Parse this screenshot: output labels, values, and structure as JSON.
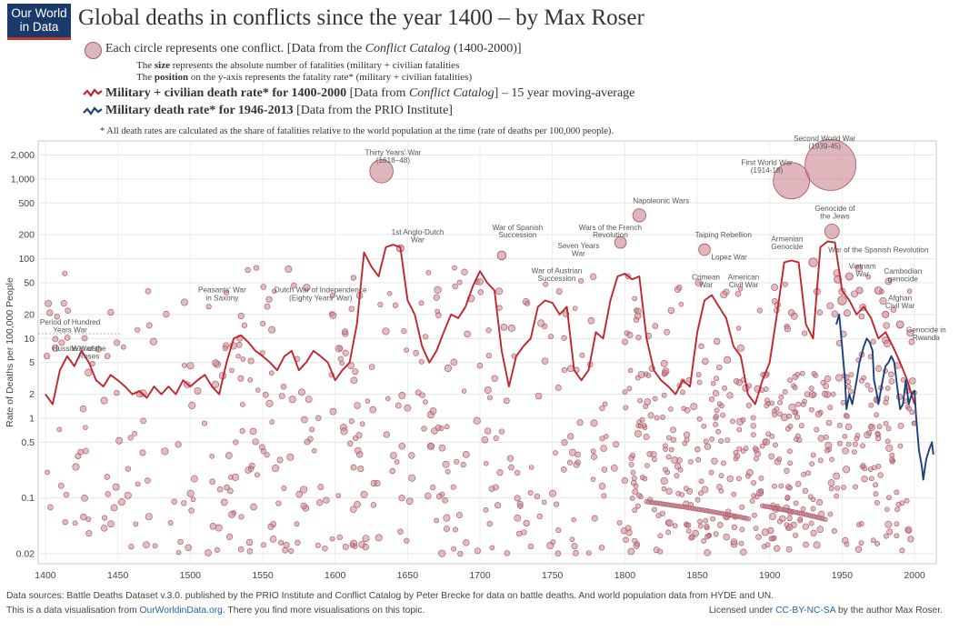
{
  "logo": {
    "line1": "Our World",
    "line2": "in Data"
  },
  "title": "Global deaths in conflicts since the year 1400 – by Max Roser",
  "legend": {
    "circles_a": "Each circle represents one conflict. [Data from the ",
    "circles_b": "Conflict Catalog",
    "circles_c": " (1400-2000)]",
    "size_a": "The ",
    "size_b": "size",
    "size_c": " represents the absolute number of fatalities (military + civilian fatalities",
    "pos_a": "The ",
    "pos_b": "position",
    "pos_c": " on the y-axis represents the fatality rate* (military + civilian fatalities)",
    "red_a": "Military + civilian death rate* for 1400-2000",
    "red_b": " [Data from ",
    "red_c": "Conflict Catalog",
    "red_d": "] – 15 year moving-average",
    "blue_a": "Military death rate* for 1946-2013",
    "blue_b": " [Data from the PRIO Institute]",
    "note": "* All death rates are calculated as the share of fatalities relative to the world population at the time (rate of deaths per 100,000 people)."
  },
  "footer": {
    "sources": "Data sources: Battle Deaths Dataset v.3.0. published by the PRIO Institute and Conflict Catalog by Peter Brecke for data on battle deaths. And world population data from HYDE and UN.",
    "vis_a": "This is a data visualisation from ",
    "vis_link": "OurWorldinData.org",
    "vis_b": ". There you find more visualisations on this topic.",
    "lic_a": "Licensed under ",
    "lic_link": "CC-BY-NC-SA",
    "lic_b": " by the author Max Roser."
  },
  "colors": {
    "red": "#c0262d",
    "blue": "#1f3f7a",
    "circle_fill": "#c9868f",
    "circle_stroke": "#a8525e"
  },
  "chart_data": {
    "type": "scatter",
    "xlim": [
      1395,
      2015
    ],
    "ylim": [
      0.015,
      3000
    ],
    "yscale": "log",
    "ylabel": "Rate of Deaths per 100,000 People",
    "xticks": [
      1400,
      1450,
      1500,
      1550,
      1600,
      1650,
      1700,
      1750,
      1800,
      1850,
      1900,
      1950,
      2000
    ],
    "yticks": [
      {
        "v": 2000,
        "label": "2,000"
      },
      {
        "v": 1000,
        "label": "1,000"
      },
      {
        "v": 500,
        "label": "500"
      },
      {
        "v": 200,
        "label": "200"
      },
      {
        "v": 100,
        "label": "100"
      },
      {
        "v": 50,
        "label": "50"
      },
      {
        "v": 20,
        "label": "20"
      },
      {
        "v": 10,
        "label": "10"
      },
      {
        "v": 5,
        "label": "5"
      },
      {
        "v": 2,
        "label": "2"
      },
      {
        "v": 1,
        "label": "1"
      },
      {
        "v": 0.5,
        "label": "0.5"
      },
      {
        "v": 0.1,
        "label": "0.1"
      },
      {
        "v": 0.02,
        "label": "0.02"
      }
    ],
    "red_series": [
      [
        1400,
        2
      ],
      [
        1405,
        1.5
      ],
      [
        1410,
        4
      ],
      [
        1415,
        6
      ],
      [
        1420,
        4.5
      ],
      [
        1425,
        7
      ],
      [
        1430,
        5
      ],
      [
        1435,
        3
      ],
      [
        1440,
        2.5
      ],
      [
        1445,
        3.5
      ],
      [
        1450,
        3
      ],
      [
        1455,
        2.5
      ],
      [
        1460,
        2
      ],
      [
        1465,
        2.2
      ],
      [
        1470,
        1.8
      ],
      [
        1475,
        2.5
      ],
      [
        1480,
        2
      ],
      [
        1485,
        2.5
      ],
      [
        1490,
        2
      ],
      [
        1495,
        3
      ],
      [
        1500,
        2.5
      ],
      [
        1505,
        3
      ],
      [
        1510,
        3.5
      ],
      [
        1515,
        2.5
      ],
      [
        1520,
        2
      ],
      [
        1525,
        5
      ],
      [
        1530,
        10
      ],
      [
        1535,
        11
      ],
      [
        1540,
        9
      ],
      [
        1545,
        7
      ],
      [
        1550,
        6
      ],
      [
        1555,
        5
      ],
      [
        1560,
        4
      ],
      [
        1565,
        6
      ],
      [
        1570,
        7
      ],
      [
        1575,
        4
      ],
      [
        1580,
        5
      ],
      [
        1585,
        7
      ],
      [
        1590,
        6
      ],
      [
        1595,
        5
      ],
      [
        1600,
        3
      ],
      [
        1605,
        4
      ],
      [
        1610,
        5
      ],
      [
        1615,
        15
      ],
      [
        1620,
        120
      ],
      [
        1625,
        80
      ],
      [
        1630,
        60
      ],
      [
        1635,
        140
      ],
      [
        1640,
        150
      ],
      [
        1645,
        140
      ],
      [
        1650,
        30
      ],
      [
        1655,
        20
      ],
      [
        1660,
        8
      ],
      [
        1665,
        5
      ],
      [
        1670,
        7
      ],
      [
        1675,
        12
      ],
      [
        1680,
        20
      ],
      [
        1685,
        18
      ],
      [
        1690,
        25
      ],
      [
        1695,
        45
      ],
      [
        1700,
        70
      ],
      [
        1705,
        50
      ],
      [
        1710,
        40
      ],
      [
        1715,
        7
      ],
      [
        1720,
        2.5
      ],
      [
        1725,
        6
      ],
      [
        1730,
        8
      ],
      [
        1735,
        10
      ],
      [
        1740,
        25
      ],
      [
        1745,
        30
      ],
      [
        1750,
        28
      ],
      [
        1755,
        20
      ],
      [
        1760,
        25
      ],
      [
        1765,
        4
      ],
      [
        1770,
        3
      ],
      [
        1775,
        4
      ],
      [
        1780,
        12
      ],
      [
        1785,
        10
      ],
      [
        1790,
        30
      ],
      [
        1795,
        60
      ],
      [
        1800,
        65
      ],
      [
        1805,
        55
      ],
      [
        1810,
        60
      ],
      [
        1815,
        10
      ],
      [
        1820,
        4
      ],
      [
        1825,
        3
      ],
      [
        1830,
        2.5
      ],
      [
        1835,
        2
      ],
      [
        1840,
        3
      ],
      [
        1845,
        2.5
      ],
      [
        1850,
        12
      ],
      [
        1855,
        30
      ],
      [
        1860,
        35
      ],
      [
        1865,
        25
      ],
      [
        1870,
        18
      ],
      [
        1875,
        8
      ],
      [
        1880,
        6
      ],
      [
        1885,
        2
      ],
      [
        1890,
        1.5
      ],
      [
        1895,
        3
      ],
      [
        1900,
        5
      ],
      [
        1905,
        20
      ],
      [
        1910,
        90
      ],
      [
        1915,
        95
      ],
      [
        1920,
        90
      ],
      [
        1925,
        15
      ],
      [
        1930,
        10
      ],
      [
        1935,
        140
      ],
      [
        1940,
        165
      ],
      [
        1945,
        160
      ],
      [
        1950,
        40
      ],
      [
        1955,
        30
      ],
      [
        1960,
        20
      ],
      [
        1965,
        25
      ],
      [
        1970,
        18
      ],
      [
        1975,
        10
      ],
      [
        1980,
        12
      ],
      [
        1985,
        8
      ],
      [
        1990,
        5
      ],
      [
        1995,
        3
      ],
      [
        2000,
        1.5
      ]
    ],
    "blue_series": [
      [
        1946,
        15
      ],
      [
        1948,
        20
      ],
      [
        1950,
        8
      ],
      [
        1952,
        3
      ],
      [
        1953,
        1.3
      ],
      [
        1955,
        2
      ],
      [
        1957,
        1.5
      ],
      [
        1960,
        3
      ],
      [
        1962,
        5
      ],
      [
        1965,
        8
      ],
      [
        1967,
        10
      ],
      [
        1969,
        9
      ],
      [
        1971,
        7
      ],
      [
        1972,
        3
      ],
      [
        1974,
        2
      ],
      [
        1975,
        1.5
      ],
      [
        1978,
        3
      ],
      [
        1980,
        4.5
      ],
      [
        1982,
        5
      ],
      [
        1984,
        6
      ],
      [
        1986,
        5
      ],
      [
        1988,
        2.5
      ],
      [
        1990,
        1.3
      ],
      [
        1992,
        1.5
      ],
      [
        1994,
        3
      ],
      [
        1996,
        1.5
      ],
      [
        1998,
        2
      ],
      [
        2000,
        2.2
      ],
      [
        2001,
        1.1
      ],
      [
        2003,
        0.4
      ],
      [
        2005,
        0.25
      ],
      [
        2006,
        0.17
      ],
      [
        2008,
        0.3
      ],
      [
        2010,
        0.4
      ],
      [
        2012,
        0.5
      ],
      [
        2013,
        0.35
      ]
    ],
    "big_conflicts": [
      {
        "x": 1632,
        "y": 1250,
        "s": 1.6
      },
      {
        "x": 1915,
        "y": 950,
        "s": 2.5
      },
      {
        "x": 1942,
        "y": 1500,
        "s": 3.5
      },
      {
        "x": 1810,
        "y": 350,
        "s": 0.9
      },
      {
        "x": 1943,
        "y": 220,
        "s": 1.0
      },
      {
        "x": 1855,
        "y": 130,
        "s": 0.8
      },
      {
        "x": 1797,
        "y": 160,
        "s": 0.8
      },
      {
        "x": 1715,
        "y": 110,
        "s": 0.6
      },
      {
        "x": 1645,
        "y": 135,
        "s": 0.5
      },
      {
        "x": 1930,
        "y": 90,
        "s": 0.6
      },
      {
        "x": 1955,
        "y": 60,
        "s": 0.5
      },
      {
        "x": 1962,
        "y": 40,
        "s": 0.45
      },
      {
        "x": 1975,
        "y": 40,
        "s": 0.5
      },
      {
        "x": 1980,
        "y": 20,
        "s": 0.45
      },
      {
        "x": 1990,
        "y": 15,
        "s": 0.5
      },
      {
        "x": 1947,
        "y": 55,
        "s": 0.5
      },
      {
        "x": 1950,
        "y": 30,
        "s": 0.6
      }
    ],
    "annotations": [
      {
        "t": "Thirty Years' War",
        "x": 1640,
        "y": 2000
      },
      {
        "t": "(1618–48)",
        "x": 1640,
        "y": 1600
      },
      {
        "t": "Second World War",
        "x": 1938,
        "y": 3000
      },
      {
        "t": "(1939-45)",
        "x": 1938,
        "y": 2400
      },
      {
        "t": "First World War",
        "x": 1898,
        "y": 1500
      },
      {
        "t": "(1914-18)",
        "x": 1898,
        "y": 1200
      },
      {
        "t": "Napoleonic Wars",
        "x": 1825,
        "y": 500
      },
      {
        "t": "Genocide of",
        "x": 1945,
        "y": 400
      },
      {
        "t": "the Jews",
        "x": 1945,
        "y": 320
      },
      {
        "t": "1st Anglo-Dutch",
        "x": 1657,
        "y": 200
      },
      {
        "t": "War",
        "x": 1657,
        "y": 160
      },
      {
        "t": "War of Spanish",
        "x": 1726,
        "y": 230
      },
      {
        "t": "Succession",
        "x": 1726,
        "y": 185
      },
      {
        "t": "Wars of the French",
        "x": 1790,
        "y": 230
      },
      {
        "t": "Revolution",
        "x": 1790,
        "y": 185
      },
      {
        "t": "Taiping Rebellion",
        "x": 1868,
        "y": 185
      },
      {
        "t": "Armenian",
        "x": 1912,
        "y": 165
      },
      {
        "t": "Genocide",
        "x": 1912,
        "y": 132
      },
      {
        "t": "War of the Spanish Revolution",
        "x": 1975,
        "y": 120
      },
      {
        "t": "Seven Years",
        "x": 1768,
        "y": 135
      },
      {
        "t": "War",
        "x": 1768,
        "y": 108
      },
      {
        "t": "Lopez War",
        "x": 1872,
        "y": 98
      },
      {
        "t": "War of Austrian",
        "x": 1753,
        "y": 66
      },
      {
        "t": "Succession",
        "x": 1753,
        "y": 53
      },
      {
        "t": "Crimean",
        "x": 1856,
        "y": 55
      },
      {
        "t": "War",
        "x": 1856,
        "y": 44
      },
      {
        "t": "American",
        "x": 1882,
        "y": 55
      },
      {
        "t": "Civil War",
        "x": 1882,
        "y": 44
      },
      {
        "t": "Vietnam",
        "x": 1964,
        "y": 75
      },
      {
        "t": "War",
        "x": 1964,
        "y": 60
      },
      {
        "t": "Cambodian",
        "x": 1992,
        "y": 65
      },
      {
        "t": "genocide",
        "x": 1992,
        "y": 52
      },
      {
        "t": "Afghan",
        "x": 1990,
        "y": 30
      },
      {
        "t": "Civil War",
        "x": 1990,
        "y": 24
      },
      {
        "t": "Genocide in",
        "x": 2008,
        "y": 12
      },
      {
        "t": "Rwanda",
        "x": 2008,
        "y": 9.6
      },
      {
        "t": "Peasants' War",
        "x": 1522,
        "y": 38
      },
      {
        "t": "in Saxony",
        "x": 1522,
        "y": 30
      },
      {
        "t": "Dutch War of Independence",
        "x": 1590,
        "y": 38
      },
      {
        "t": "(Eighty Years' War)",
        "x": 1590,
        "y": 30
      },
      {
        "t": "Period of Hundred",
        "x": 1417,
        "y": 15
      },
      {
        "t": "Years War",
        "x": 1417,
        "y": 12
      },
      {
        "t": "Hussite Wars",
        "x": 1420,
        "y": 7
      },
      {
        "t": "War of the",
        "x": 1430,
        "y": 7
      },
      {
        "t": "Roses",
        "x": 1430,
        "y": 5.6
      }
    ]
  }
}
